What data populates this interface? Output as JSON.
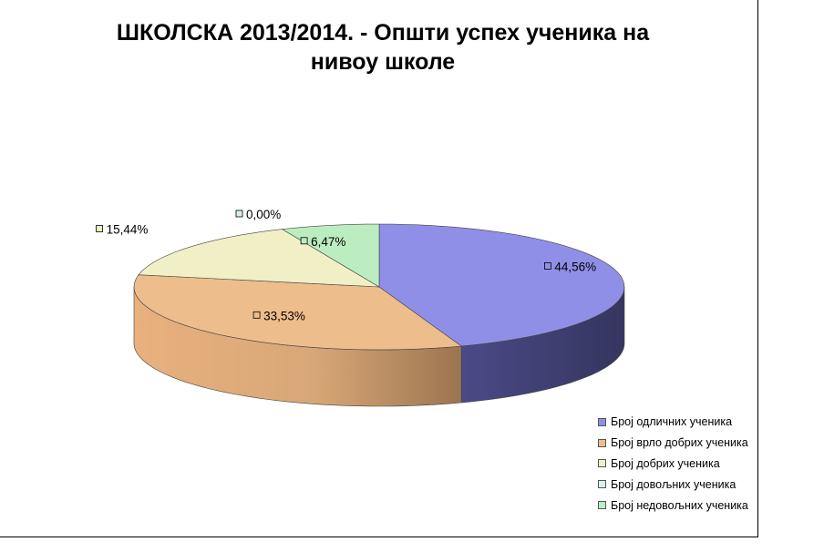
{
  "chart_data": {
    "type": "pie",
    "title": "ШКОЛСКА 2013/2014. -  Општи успех ученика на нивоу школе",
    "title_lines": [
      "ШКОЛСКА 2013/2014. -  Општи успех ученика на",
      "нивоу школе"
    ],
    "categories": [
      "Број одличних ученика",
      "Број врло добрих ученика",
      "Број добрих ученика",
      "Број довољних ученика",
      "Број недовољних ученика"
    ],
    "values": [
      44.56,
      33.53,
      15.44,
      0.0,
      6.47
    ],
    "data_labels": [
      "44,56%",
      "33,53%",
      "15,44%",
      "0,00%",
      "6,47%"
    ],
    "colors": [
      "#8f8fe8",
      "#eebd8c",
      "#f0efc6",
      "#d8f0f0",
      "#bcedc0"
    ],
    "legend_position": "bottom-right",
    "style": "3d"
  }
}
